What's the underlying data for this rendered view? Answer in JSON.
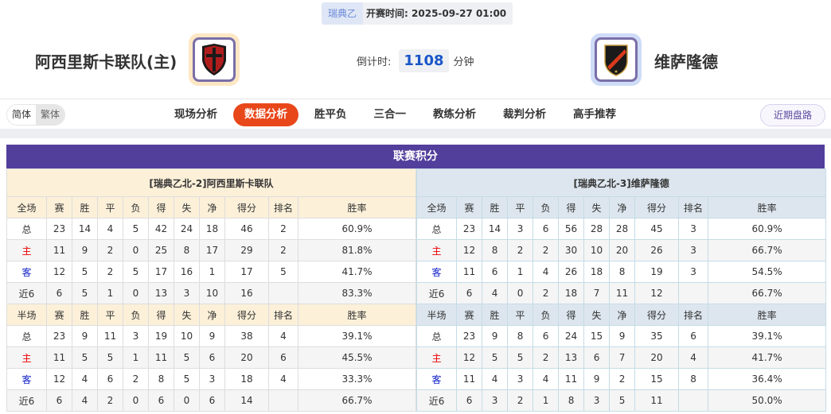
{
  "match": {
    "league": "瑞典乙",
    "time_label": "开赛时间:",
    "time": "2025-09-27 01:00"
  },
  "home": {
    "name": "阿西里斯卡联队(主)",
    "logo_ring": "#fde7c4",
    "logo_colors": [
      "#b01d1d",
      "#1a1a1a"
    ]
  },
  "away": {
    "name": "维萨隆德",
    "logo_ring": "#cfdcf7",
    "logo_colors": [
      "#1a1a1a",
      "#d83a1a"
    ]
  },
  "countdown": {
    "label": "倒计时:",
    "value": "1108",
    "unit": "分钟"
  },
  "lang": {
    "simplified": "简体",
    "traditional": "繁体"
  },
  "tabs": [
    "现场分析",
    "数据分析",
    "胜平负",
    "三合一",
    "教练分析",
    "裁判分析",
    "高手推荐"
  ],
  "active_tab": "数据分析",
  "recent_button": "近期盘路",
  "standings": {
    "title": "联赛积分",
    "full_header": [
      "全场",
      "赛",
      "胜",
      "平",
      "负",
      "得",
      "失",
      "净",
      "得分",
      "排名",
      "胜率"
    ],
    "half_header": [
      "半场",
      "赛",
      "胜",
      "平",
      "负",
      "得",
      "失",
      "净",
      "得分",
      "排名",
      "胜率"
    ],
    "home": {
      "team": "[瑞典乙北-2]阿西里斯卡联队",
      "full": [
        [
          "总",
          "23",
          "14",
          "4",
          "5",
          "42",
          "24",
          "18",
          "46",
          "2",
          "60.9%"
        ],
        [
          "主",
          "11",
          "9",
          "2",
          "0",
          "25",
          "8",
          "17",
          "29",
          "2",
          "81.8%"
        ],
        [
          "客",
          "12",
          "5",
          "2",
          "5",
          "17",
          "16",
          "1",
          "17",
          "5",
          "41.7%"
        ],
        [
          "近6",
          "6",
          "5",
          "1",
          "0",
          "13",
          "3",
          "10",
          "16",
          "",
          "83.3%"
        ]
      ],
      "half": [
        [
          "总",
          "23",
          "9",
          "11",
          "3",
          "19",
          "10",
          "9",
          "38",
          "4",
          "39.1%"
        ],
        [
          "主",
          "11",
          "5",
          "5",
          "1",
          "11",
          "5",
          "6",
          "20",
          "6",
          "45.5%"
        ],
        [
          "客",
          "12",
          "4",
          "6",
          "2",
          "8",
          "5",
          "3",
          "18",
          "4",
          "33.3%"
        ],
        [
          "近6",
          "6",
          "4",
          "2",
          "0",
          "6",
          "0",
          "6",
          "14",
          "",
          "66.7%"
        ]
      ]
    },
    "away": {
      "team": "[瑞典乙北-3]维萨隆德",
      "full": [
        [
          "总",
          "23",
          "14",
          "3",
          "6",
          "56",
          "28",
          "28",
          "45",
          "3",
          "60.9%"
        ],
        [
          "主",
          "12",
          "8",
          "2",
          "2",
          "30",
          "10",
          "20",
          "26",
          "3",
          "66.7%"
        ],
        [
          "客",
          "11",
          "6",
          "1",
          "4",
          "26",
          "18",
          "8",
          "19",
          "3",
          "54.5%"
        ],
        [
          "近6",
          "6",
          "4",
          "0",
          "2",
          "18",
          "7",
          "11",
          "12",
          "",
          "66.7%"
        ]
      ],
      "half": [
        [
          "总",
          "23",
          "9",
          "8",
          "6",
          "24",
          "15",
          "9",
          "35",
          "6",
          "39.1%"
        ],
        [
          "主",
          "12",
          "5",
          "5",
          "2",
          "13",
          "6",
          "7",
          "20",
          "4",
          "41.7%"
        ],
        [
          "客",
          "11",
          "4",
          "3",
          "4",
          "11",
          "9",
          "2",
          "15",
          "8",
          "36.4%"
        ],
        [
          "近6",
          "6",
          "3",
          "2",
          "1",
          "8",
          "3",
          "5",
          "11",
          "",
          "50.0%"
        ]
      ]
    }
  },
  "colors": {
    "title_bar": "#523f9c",
    "active_tab": "#e8471a",
    "home_label": "#ee0000",
    "away_label": "#1222c8"
  }
}
